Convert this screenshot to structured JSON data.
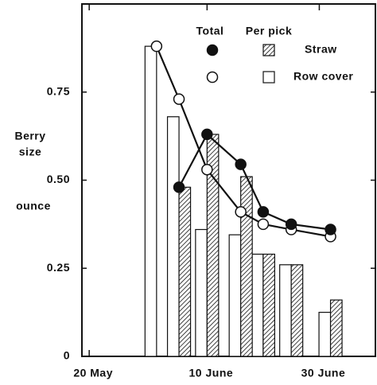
{
  "chart_data": {
    "type": "bar_line",
    "ylabel": [
      "Berry",
      "size",
      "ounce"
    ],
    "x": [
      12,
      16,
      21,
      27,
      31,
      36,
      43
    ],
    "xlim": [
      -1.3,
      51
    ],
    "xticks": [
      {
        "value": 0,
        "label": "20 May"
      },
      {
        "value": 21,
        "label": "10 June"
      },
      {
        "value": 41,
        "label": "30 June"
      }
    ],
    "ylim": [
      0,
      1.0
    ],
    "yticks": [
      0,
      0.25,
      {
        "value": 0.5,
        "label": "0.50"
      },
      0.75
    ],
    "legend": {
      "headers": [
        "Total",
        "Per pick"
      ],
      "rows": [
        "Straw",
        "Row cover"
      ]
    },
    "series": [
      {
        "kind": "bar",
        "legend_row": 1,
        "fill": "white",
        "side": "left",
        "values": [
          0.88,
          0.68,
          0.36,
          0.345,
          0.29,
          0.26,
          0.125
        ]
      },
      {
        "kind": "bar",
        "legend_row": 0,
        "fill": "hatch",
        "side": "right",
        "values": [
          null,
          0.48,
          0.63,
          0.51,
          0.29,
          0.26,
          0.16
        ]
      },
      {
        "kind": "line",
        "legend_row": 1,
        "fill": "white",
        "values": [
          0.88,
          0.73,
          0.53,
          0.41,
          0.375,
          0.36,
          0.34
        ]
      },
      {
        "kind": "line",
        "legend_row": 0,
        "fill": "black",
        "values": [
          null,
          0.48,
          0.63,
          0.545,
          0.41,
          0.375,
          0.36
        ]
      }
    ]
  }
}
